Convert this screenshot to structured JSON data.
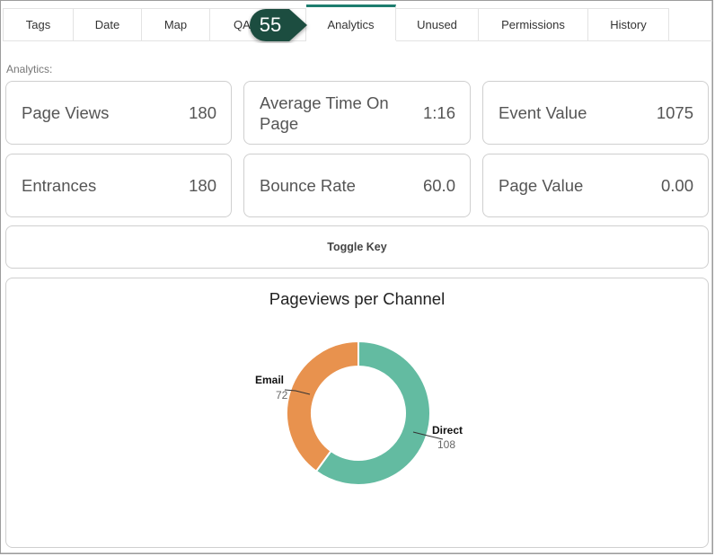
{
  "tabs": [
    {
      "label": "Tags",
      "active": false
    },
    {
      "label": "Date",
      "active": false
    },
    {
      "label": "Map",
      "active": false
    },
    {
      "label": "QA",
      "active": false
    },
    {
      "label": "Analytics",
      "active": true
    },
    {
      "label": "Unused",
      "active": false
    },
    {
      "label": "Permissions",
      "active": false
    },
    {
      "label": "History",
      "active": false
    }
  ],
  "step_callout": {
    "number": "55",
    "color": "#1f4d3f"
  },
  "section_label": "Analytics:",
  "metrics": [
    {
      "label": "Page Views",
      "value": "180"
    },
    {
      "label": "Average Time On Page",
      "value": "1:16"
    },
    {
      "label": "Event Value",
      "value": "1075"
    },
    {
      "label": "Entrances",
      "value": "180"
    },
    {
      "label": "Bounce Rate",
      "value": "60.0"
    },
    {
      "label": "Page Value",
      "value": "0.00"
    }
  ],
  "toggle_key_label": "Toggle Key",
  "accent_color": "#1d7d6f",
  "chart_data": {
    "type": "pie",
    "title": "Pageviews per Channel",
    "donut": true,
    "series": [
      {
        "name": "Direct",
        "value": 108,
        "color": "#63bba1"
      },
      {
        "name": "Email",
        "value": 72,
        "color": "#e8924e"
      }
    ]
  }
}
